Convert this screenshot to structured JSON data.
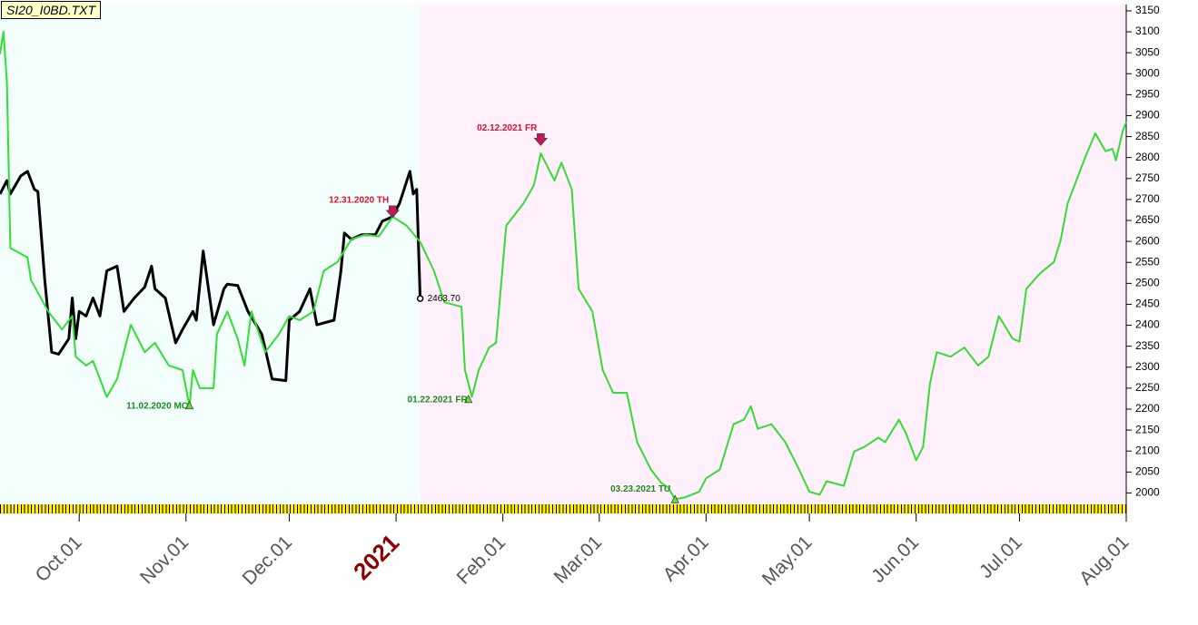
{
  "chart_data": {
    "type": "line",
    "title": "SI20_I0BD.TXT",
    "xlim": [
      "2020-09-08",
      "2021-08-01"
    ],
    "ylim": [
      1975,
      3165
    ],
    "yticks": [
      2000,
      2050,
      2100,
      2150,
      2200,
      2250,
      2300,
      2350,
      2400,
      2450,
      2500,
      2550,
      2600,
      2650,
      2700,
      2750,
      2800,
      2850,
      2900,
      2950,
      3000,
      3050,
      3100,
      3150
    ],
    "xticks": [
      {
        "value": "2020-10-01",
        "label": "Oct.01"
      },
      {
        "value": "2020-11-01",
        "label": "Nov.01"
      },
      {
        "value": "2020-12-01",
        "label": "Dec.01"
      },
      {
        "value": "2021-01-01",
        "label": "2021",
        "color": "#8b0000"
      },
      {
        "value": "2021-02-01",
        "label": "Feb.01"
      },
      {
        "value": "2021-03-01",
        "label": "Mar.01"
      },
      {
        "value": "2021-04-01",
        "label": "Apr.01"
      },
      {
        "value": "2021-05-01",
        "label": "May.01"
      },
      {
        "value": "2021-06-01",
        "label": "Jun.01"
      },
      {
        "value": "2021-07-01",
        "label": "Jul.01"
      },
      {
        "value": "2021-08-01",
        "label": "Aug.01"
      }
    ],
    "background_colors": [
      "#f2fffd",
      "#fff0fb"
    ],
    "series": [
      {
        "color": "#000000",
        "x": [
          "2020-09-08",
          "2020-09-10",
          "2020-09-11",
          "2020-09-14",
          "2020-09-16",
          "2020-09-18",
          "2020-09-19",
          "2020-09-21",
          "2020-09-23",
          "2020-09-25",
          "2020-09-28",
          "2020-09-29",
          "2020-09-30",
          "2020-10-01",
          "2020-10-03",
          "2020-10-05",
          "2020-10-07",
          "2020-10-09",
          "2020-10-12",
          "2020-10-14",
          "2020-10-15",
          "2020-10-17",
          "2020-10-20",
          "2020-10-22",
          "2020-10-23",
          "2020-10-26",
          "2020-10-29",
          "2020-10-31",
          "2020-11-03",
          "2020-11-04",
          "2020-11-06",
          "2020-11-09",
          "2020-11-12",
          "2020-11-13",
          "2020-11-16",
          "2020-11-19",
          "2020-11-23",
          "2020-11-26",
          "2020-11-30",
          "2020-12-01",
          "2020-12-04",
          "2020-12-07",
          "2020-12-09",
          "2020-12-14",
          "2020-12-16",
          "2020-12-17",
          "2020-12-19",
          "2020-12-22",
          "2020-12-26",
          "2020-12-28",
          "2020-12-31",
          "2021-01-02",
          "2021-01-05",
          "2021-01-06",
          "2021-01-07",
          "2021-01-08"
        ],
        "values": [
          2713,
          2745,
          2713,
          2756,
          2767,
          2724,
          2719,
          2508,
          2336,
          2331,
          2368,
          2465,
          2368,
          2433,
          2422,
          2465,
          2422,
          2530,
          2541,
          2433,
          2444,
          2465,
          2491,
          2541,
          2487,
          2465,
          2358,
          2390,
          2433,
          2412,
          2577,
          2401,
          2487,
          2498,
          2495,
          2433,
          2379,
          2272,
          2268,
          2412,
          2433,
          2487,
          2401,
          2412,
          2530,
          2620,
          2605,
          2616,
          2616,
          2648,
          2659,
          2691,
          2767,
          2713,
          2724,
          2463.7
        ]
      },
      {
        "color": "#33dd33",
        "x": [
          "2020-09-08",
          "2020-09-09",
          "2020-09-10",
          "2020-09-11",
          "2020-09-16",
          "2020-09-17",
          "2020-09-22",
          "2020-09-26",
          "2020-09-29",
          "2020-09-30",
          "2020-10-03",
          "2020-10-05",
          "2020-10-09",
          "2020-10-12",
          "2020-10-16",
          "2020-10-20",
          "2020-10-23",
          "2020-10-27",
          "2020-10-31",
          "2020-11-02",
          "2020-11-03",
          "2020-11-05",
          "2020-11-09",
          "2020-11-10",
          "2020-11-13",
          "2020-11-16",
          "2020-11-18",
          "2020-11-20",
          "2020-11-24",
          "2020-11-28",
          "2020-12-01",
          "2020-12-04",
          "2020-12-08",
          "2020-12-11",
          "2020-12-15",
          "2020-12-19",
          "2020-12-23",
          "2020-12-27",
          "2020-12-31",
          "2021-01-04",
          "2021-01-08",
          "2021-01-12",
          "2021-01-15",
          "2021-01-20",
          "2021-01-21",
          "2021-01-23",
          "2021-01-25",
          "2021-01-28",
          "2021-01-30",
          "2021-02-02",
          "2021-02-04",
          "2021-02-07",
          "2021-02-10",
          "2021-02-12",
          "2021-02-16",
          "2021-02-18",
          "2021-02-21",
          "2021-02-23",
          "2021-02-27",
          "2021-03-02",
          "2021-03-05",
          "2021-03-09",
          "2021-03-12",
          "2021-03-16",
          "2021-03-19",
          "2021-03-21",
          "2021-03-23",
          "2021-03-26",
          "2021-03-30",
          "2021-04-01",
          "2021-04-05",
          "2021-04-09",
          "2021-04-12",
          "2021-04-14",
          "2021-04-16",
          "2021-04-20",
          "2021-04-24",
          "2021-04-28",
          "2021-05-01",
          "2021-05-04",
          "2021-05-06",
          "2021-05-11",
          "2021-05-14",
          "2021-05-17",
          "2021-05-21",
          "2021-05-23",
          "2021-05-27",
          "2021-05-29",
          "2021-06-01",
          "2021-06-03",
          "2021-06-05",
          "2021-06-07",
          "2021-06-11",
          "2021-06-15",
          "2021-06-19",
          "2021-06-22",
          "2021-06-25",
          "2021-06-29",
          "2021-07-01",
          "2021-07-03",
          "2021-07-07",
          "2021-07-11",
          "2021-07-13",
          "2021-07-15",
          "2021-07-17",
          "2021-07-20",
          "2021-07-23",
          "2021-07-26",
          "2021-07-28",
          "2021-07-29",
          "2021-07-31",
          "2021-08-01"
        ],
        "values": [
          3047,
          3100,
          2982,
          2584,
          2562,
          2508,
          2433,
          2390,
          2422,
          2325,
          2304,
          2315,
          2229,
          2272,
          2401,
          2336,
          2358,
          2304,
          2293,
          2207,
          2293,
          2250,
          2250,
          2379,
          2433,
          2368,
          2304,
          2433,
          2336,
          2379,
          2422,
          2412,
          2433,
          2530,
          2551,
          2605,
          2616,
          2612,
          2659,
          2638,
          2599,
          2530,
          2455,
          2444,
          2293,
          2229,
          2293,
          2347,
          2358,
          2638,
          2659,
          2691,
          2734,
          2810,
          2745,
          2788,
          2724,
          2487,
          2433,
          2293,
          2239,
          2239,
          2121,
          2056,
          2024,
          2013,
          1985,
          1990,
          2003,
          2035,
          2056,
          2164,
          2175,
          2207,
          2153,
          2164,
          2121,
          2056,
          2003,
          1996,
          2028,
          2017,
          2099,
          2110,
          2132,
          2121,
          2175,
          2143,
          2078,
          2110,
          2261,
          2336,
          2325,
          2347,
          2304,
          2325,
          2422,
          2368,
          2361,
          2487,
          2524,
          2551,
          2605,
          2691,
          2734,
          2799,
          2858,
          2815,
          2821,
          2793,
          2864,
          2885
        ]
      }
    ],
    "annotations": [
      {
        "label": "12.31.2020 TH",
        "date": "2020-12-31",
        "value": 2659,
        "color": "#e0102a",
        "marker": "arrow_down"
      },
      {
        "label": "02.12.2021 FR",
        "date": "2021-02-12",
        "value": 2831,
        "color": "#e0102a",
        "marker": "arrow_down"
      },
      {
        "label": "11.02.2020 MO",
        "date": "2020-11-02",
        "value": 2207,
        "color": "#1a8a1a",
        "marker": "triangle_up"
      },
      {
        "label": "01.22.2021 FR",
        "date": "2021-01-22",
        "value": 2222,
        "color": "#1a8a1a",
        "marker": "triangle_up"
      },
      {
        "label": "03.23.2021 TU",
        "date": "2021-03-23",
        "value": 1983,
        "color": "#1a8a1a",
        "marker": "triangle_up"
      },
      {
        "label": "2463.70",
        "date": "2021-01-08",
        "value": 2463.7,
        "color": "#000000",
        "marker": "circle"
      }
    ]
  }
}
